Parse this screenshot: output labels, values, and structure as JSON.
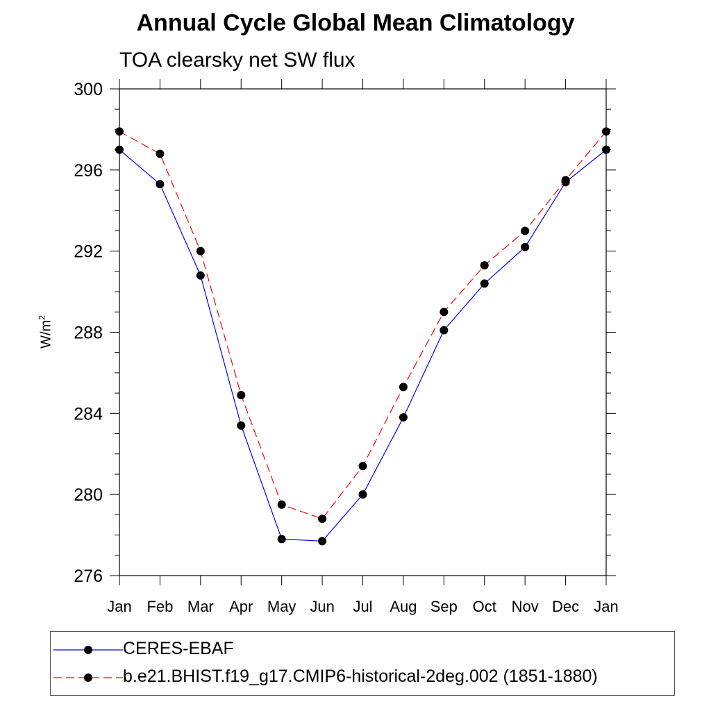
{
  "chart_data": {
    "type": "line",
    "title": "Annual Cycle Global Mean Climatology",
    "subtitle": "TOA clearsky net SW flux",
    "ylabel_base": "W/m",
    "ylabel_sup": "2",
    "xlabel": "",
    "categories": [
      "Jan",
      "Feb",
      "Mar",
      "Apr",
      "May",
      "Jun",
      "Jul",
      "Aug",
      "Sep",
      "Oct",
      "Nov",
      "Dec",
      "Jan"
    ],
    "ylim": [
      276,
      300
    ],
    "yticks": [
      "276",
      "280",
      "284",
      "288",
      "292",
      "296",
      "300"
    ],
    "grid": false,
    "legend_position": "bottom",
    "series": [
      {
        "name": "CERES-EBAF",
        "color": "#0000ff",
        "dash": "solid",
        "marker": "filled-circle",
        "values": [
          297.0,
          295.3,
          290.8,
          283.4,
          277.8,
          277.7,
          280.0,
          283.8,
          288.1,
          290.4,
          292.2,
          295.4,
          297.0
        ]
      },
      {
        "name": "b.e21.BHIST.f19_g17.CMIP6-historical-2deg.002 (1851-1880)",
        "color": "#ff0000",
        "dash": "dashed",
        "marker": "filled-circle",
        "values": [
          297.9,
          296.8,
          292.0,
          284.9,
          279.5,
          278.8,
          281.4,
          285.3,
          289.0,
          291.3,
          293.0,
          295.5,
          297.9
        ]
      }
    ]
  }
}
